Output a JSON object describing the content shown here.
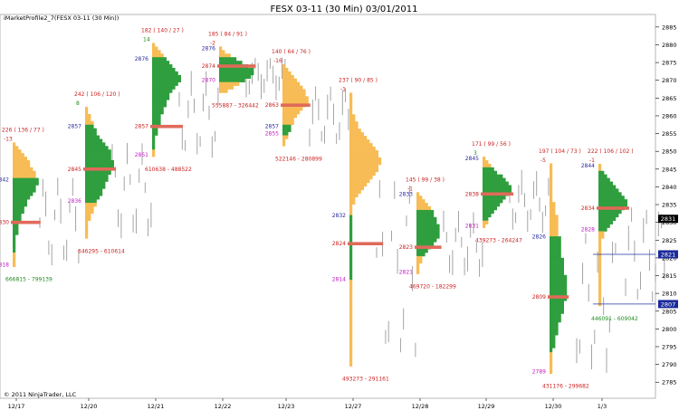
{
  "chart_data": {
    "type": "market-profile",
    "title": "FESX 03-11 (30 Min)  03/01/2011",
    "subtitle": "iMarketProfile2_7(FESX 03-11 (30 Min))",
    "copyright": "© 2011 NinjaTrader, LLC",
    "ylim": [
      2782,
      2887
    ],
    "y_ticks": [
      2785,
      2790,
      2795,
      2800,
      2805,
      2810,
      2815,
      2820,
      2825,
      2830,
      2835,
      2840,
      2845,
      2850,
      2855,
      2860,
      2865,
      2870,
      2875,
      2880,
      2885
    ],
    "x_labels": [
      "12/17",
      "12/20",
      "12/21",
      "12/22",
      "12/23",
      "12/27",
      "12/28",
      "12/29",
      "12/30",
      "1/3"
    ],
    "price_markers": [
      {
        "value": "2831",
        "price": 2831,
        "color": "#000000"
      },
      {
        "value": "2821",
        "price": 2821,
        "color": "#1a2a9a"
      },
      {
        "value": "2807",
        "price": 2807,
        "color": "#1a2a9a"
      }
    ],
    "level_lines": [
      {
        "price": 2821,
        "color": "#2233aa"
      },
      {
        "price": 2807,
        "color": "#2233aa"
      }
    ],
    "profiles": [
      {
        "date": "12/17",
        "header": "226 ( 136 / 77 )",
        "delta": "-13",
        "delta_color": "red",
        "poc": 2830,
        "poc_label": "2830",
        "high": 2852,
        "high_label": "",
        "low": 2818,
        "low_label": "2818",
        "value_high": 2842,
        "value_high_label": "2842",
        "value_low": 2822,
        "volume_label": "666815 - 799139",
        "volume_color": "green",
        "counts": [
          1,
          2,
          3,
          4,
          5,
          6,
          6,
          7,
          8,
          8,
          9,
          9,
          8,
          8,
          7,
          6,
          5,
          5,
          4,
          4,
          3,
          3,
          2,
          2,
          2,
          2,
          1,
          1,
          1,
          1,
          1,
          1,
          1,
          1,
          1
        ]
      },
      {
        "date": "12/20",
        "header": "242 ( 106 / 120 )",
        "delta": "8",
        "delta_color": "green",
        "poc": 2845,
        "poc_label": "2845",
        "high": 2862,
        "high_label": "",
        "low": 2826,
        "low_label": "",
        "value_high": 2857,
        "value_high_label": "2857",
        "value_low": 2836,
        "value_low_label": "2836",
        "volume_label": "646295 - 610614",
        "volume_color": "red",
        "counts": [
          1,
          1,
          2,
          2,
          3,
          3,
          4,
          4,
          5,
          6,
          7,
          8,
          9,
          9,
          9,
          10,
          10,
          9,
          9,
          8,
          8,
          7,
          7,
          6,
          6,
          5,
          4,
          4,
          3,
          3,
          2,
          2,
          1,
          1,
          1,
          1,
          1
        ]
      },
      {
        "date": "12/21",
        "header": "182 ( 140 / 27 )",
        "delta": "14",
        "delta_color": "green",
        "poc": 2857,
        "poc_label": "2857",
        "high": 2880,
        "high_label": "",
        "low": 2849,
        "low_label": "2851",
        "value_high": 2876,
        "value_high_label": "2876",
        "value_low": 2851,
        "volume_label": "610638 - 488522",
        "volume_color": "red",
        "counts": [
          1,
          2,
          3,
          4,
          5,
          6,
          7,
          8,
          9,
          10,
          10,
          9,
          8,
          7,
          6,
          6,
          5,
          5,
          4,
          4,
          3,
          3,
          3,
          2,
          2,
          2,
          1,
          1,
          1,
          1,
          1,
          1
        ]
      },
      {
        "date": "12/22",
        "header": "185 ( 84 / 91 )",
        "delta": "-2",
        "delta_color": "red",
        "poc": 2874,
        "poc_label": "2874",
        "high": 2879,
        "high_label": "2876",
        "low": 2867,
        "low_label": "",
        "value_high": 2876,
        "value_high_label": "",
        "value_low": 2870,
        "value_low_label": "2870",
        "volume_label": "555887 - 326442",
        "volume_color": "red",
        "counts": [
          1,
          2,
          4,
          6,
          8,
          10,
          12,
          12,
          11,
          9,
          7,
          5,
          3
        ]
      },
      {
        "date": "12/23",
        "header": "140 ( 64 / 76 )",
        "delta": "-16",
        "delta_color": "red",
        "poc": 2863,
        "poc_label": "2863",
        "high": 2874,
        "high_label": "",
        "low": 2852,
        "low_label": "",
        "value_high": 2857,
        "value_high_label": "2857",
        "value_low": 2855,
        "value_low_label": "2855",
        "volume_label": "522146 - 280899",
        "volume_color": "red",
        "counts": [
          1,
          2,
          3,
          4,
          5,
          6,
          7,
          8,
          8,
          9,
          9,
          8,
          7,
          6,
          5,
          4,
          4,
          3,
          3,
          2,
          2,
          1,
          1
        ]
      },
      {
        "date": "12/27",
        "header": "237 ( 90 / 85 )",
        "delta": "-1",
        "delta_color": "red",
        "poc": 2824,
        "poc_label": "2824",
        "high": 2866,
        "high_label": "",
        "low": 2790,
        "low_label": "",
        "value_high": 2832,
        "value_high_label": "2832",
        "value_low": 2814,
        "value_low_label": "2814",
        "volume_label": "493273 - 291161",
        "volume_color": "red",
        "counts": [
          1,
          1,
          1,
          1,
          1,
          1,
          2,
          2,
          3,
          3,
          4,
          5,
          6,
          7,
          8,
          9,
          10,
          10,
          11,
          11,
          10,
          10,
          9,
          8,
          7,
          6,
          5,
          4,
          3,
          2,
          2,
          1,
          1,
          1,
          1,
          1,
          1,
          1,
          1,
          1,
          1,
          1,
          1,
          1,
          1,
          1,
          1,
          1,
          1,
          1,
          1,
          1,
          1,
          1,
          1,
          1,
          1,
          1,
          1,
          1,
          1,
          1,
          1,
          1,
          1,
          1,
          1,
          1,
          1,
          1,
          1,
          1,
          1,
          1,
          1,
          1
        ]
      },
      {
        "date": "12/28",
        "header": "145 ( 99 / 38 )",
        "delta": "-1",
        "delta_color": "red",
        "poc": 2823,
        "poc_label": "2823",
        "high": 2838,
        "high_label": "2833",
        "low": 2816,
        "low_label": "2821",
        "value_high": 2833,
        "value_high_label": "",
        "value_low": 2821,
        "volume_label": "469720 - 182299",
        "volume_color": "red",
        "counts": [
          1,
          2,
          3,
          4,
          5,
          6,
          6,
          7,
          7,
          8,
          8,
          8,
          8,
          7,
          6,
          5,
          4,
          3,
          2,
          2,
          1,
          1,
          1
        ]
      },
      {
        "date": "12/29",
        "header": "171 ( 99 / 56 )",
        "delta": "3",
        "delta_color": "green",
        "poc": 2838,
        "poc_label": "2838",
        "high": 2848,
        "high_label": "2845",
        "low": 2829,
        "low_label": "2831",
        "value_high": 2845,
        "value_high_label": "",
        "value_low": 2831,
        "volume_label": "439273 - 264247",
        "volume_color": "red",
        "counts": [
          1,
          2,
          3,
          4,
          5,
          7,
          8,
          9,
          10,
          10,
          9,
          8,
          7,
          6,
          5,
          4,
          3,
          2,
          2,
          1
        ]
      },
      {
        "date": "12/30",
        "header": "197 ( 104 / 73 )",
        "delta": "-5",
        "delta_color": "red",
        "poc": 2809,
        "poc_label": "2809",
        "high": 2846,
        "high_label": "",
        "low": 2788,
        "low_label": "2789",
        "value_high": 2826,
        "value_high_label": "2826",
        "value_low": 2793,
        "volume_label": "431176 - 299682",
        "volume_color": "red",
        "counts": [
          1,
          1,
          1,
          1,
          1,
          1,
          1,
          1,
          1,
          2,
          2,
          2,
          3,
          3,
          3,
          3,
          3,
          4,
          4,
          4,
          4,
          4,
          5,
          5,
          5,
          5,
          6,
          6,
          6,
          6,
          6,
          6,
          5,
          5,
          5,
          4,
          4,
          3,
          3,
          3,
          2,
          2,
          2,
          1,
          1,
          1,
          1,
          1,
          1
        ]
      },
      {
        "date": "1/3",
        "header": "222 ( 106 / 102 )",
        "delta": "-1",
        "delta_color": "red",
        "poc": 2834,
        "poc_label": "2834",
        "high": 2846,
        "high_label": "2844",
        "low": 2807,
        "low_label": "",
        "value_high": 2844,
        "value_high_label": "",
        "value_low": 2828,
        "value_low_label": "2828",
        "volume_label": "446091 - 609042",
        "volume_color": "green",
        "counts": [
          1,
          1,
          2,
          3,
          4,
          5,
          6,
          7,
          8,
          9,
          10,
          10,
          9,
          8,
          7,
          6,
          5,
          4,
          3,
          2,
          2,
          1,
          1,
          1,
          1,
          1,
          1,
          1,
          1,
          1,
          1,
          1,
          1,
          1,
          1,
          1,
          1,
          1,
          1,
          1
        ]
      }
    ]
  },
  "colors": {
    "value_area": "#2f9e3e",
    "outside_value": "#f7bc55",
    "poc": "#e06a5a",
    "label_red": "#cc2222",
    "label_green": "#1f8a1f",
    "label_blue": "#2a2aa0",
    "label_magenta": "#c020c0",
    "bars": "#9a9a9a"
  }
}
